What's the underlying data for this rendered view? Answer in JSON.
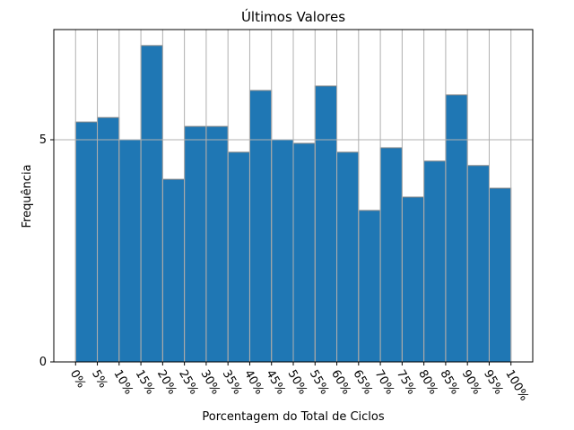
{
  "chart_data": {
    "type": "histogram",
    "title": "Últimos Valores",
    "x_label": "Porcentagem do Total de Ciclos",
    "y_label": "Frequência",
    "bins": [
      0,
      5,
      10,
      15,
      20,
      25,
      30,
      35,
      40,
      45,
      50,
      55,
      60,
      65,
      70,
      75,
      80,
      85,
      90,
      95,
      100
    ],
    "values": [
      5.4,
      5.5,
      5.0,
      7.12,
      4.11,
      5.3,
      5.3,
      4.72,
      6.11,
      5.0,
      4.92,
      6.21,
      4.72,
      3.41,
      4.82,
      3.71,
      4.52,
      6.01,
      4.42,
      3.91
    ],
    "color": "#1f77b4",
    "edge_color": "#888888",
    "xlim": [
      -5,
      105
    ],
    "xticks": [
      {
        "value": 0,
        "label": "0%"
      },
      {
        "value": 5,
        "label": "5%"
      },
      {
        "value": 10,
        "label": "10%"
      },
      {
        "value": 15,
        "label": "15%"
      },
      {
        "value": 20,
        "label": "20%"
      },
      {
        "value": 25,
        "label": "25%"
      },
      {
        "value": 30,
        "label": "30%"
      },
      {
        "value": 35,
        "label": "35%"
      },
      {
        "value": 40,
        "label": "40%"
      },
      {
        "value": 45,
        "label": "45%"
      },
      {
        "value": 50,
        "label": "50%"
      },
      {
        "value": 55,
        "label": "55%"
      },
      {
        "value": 60,
        "label": "60%"
      },
      {
        "value": 65,
        "label": "65%"
      },
      {
        "value": 70,
        "label": "70%"
      },
      {
        "value": 75,
        "label": "75%"
      },
      {
        "value": 80,
        "label": "80%"
      },
      {
        "value": 85,
        "label": "85%"
      },
      {
        "value": 90,
        "label": "90%"
      },
      {
        "value": 95,
        "label": "95%"
      },
      {
        "value": 100,
        "label": "100%"
      }
    ],
    "ylim": [
      0,
      7.48
    ],
    "yticks": [
      0,
      5
    ],
    "grid": true
  }
}
